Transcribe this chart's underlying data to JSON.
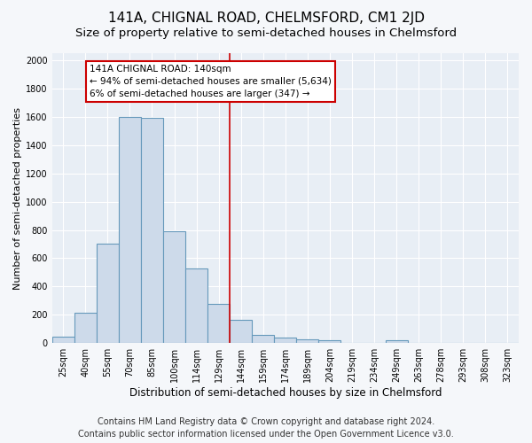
{
  "title": "141A, CHIGNAL ROAD, CHELMSFORD, CM1 2JD",
  "subtitle": "Size of property relative to semi-detached houses in Chelmsford",
  "xlabel": "Distribution of semi-detached houses by size in Chelmsford",
  "ylabel": "Number of semi-detached properties",
  "categories": [
    "25sqm",
    "40sqm",
    "55sqm",
    "70sqm",
    "85sqm",
    "100sqm",
    "114sqm",
    "129sqm",
    "144sqm",
    "159sqm",
    "174sqm",
    "189sqm",
    "204sqm",
    "219sqm",
    "234sqm",
    "249sqm",
    "263sqm",
    "278sqm",
    "293sqm",
    "308sqm",
    "323sqm"
  ],
  "values": [
    45,
    215,
    700,
    1600,
    1590,
    790,
    530,
    275,
    165,
    60,
    37,
    25,
    20,
    0,
    0,
    20,
    0,
    0,
    0,
    0,
    0
  ],
  "bar_color": "#cddaea",
  "bar_edge_color": "#6699bb",
  "vline_color": "#cc0000",
  "vline_index": 8,
  "annotation_text_line1": "141A CHIGNAL ROAD: 140sqm",
  "annotation_text_line2": "← 94% of semi-detached houses are smaller (5,634)",
  "annotation_text_line3": "6% of semi-detached houses are larger (347) →",
  "ylim": [
    0,
    2050
  ],
  "yticks": [
    0,
    200,
    400,
    600,
    800,
    1000,
    1200,
    1400,
    1600,
    1800,
    2000
  ],
  "footer_line1": "Contains HM Land Registry data © Crown copyright and database right 2024.",
  "footer_line2": "Contains public sector information licensed under the Open Government Licence v3.0.",
  "plot_bg_color": "#e8eef5",
  "fig_bg_color": "#f5f7fa",
  "grid_color": "#ffffff",
  "title_fontsize": 11,
  "subtitle_fontsize": 9.5,
  "ylabel_fontsize": 8,
  "xlabel_fontsize": 8.5,
  "tick_fontsize": 7,
  "ann_fontsize": 7.5,
  "footer_fontsize": 7
}
